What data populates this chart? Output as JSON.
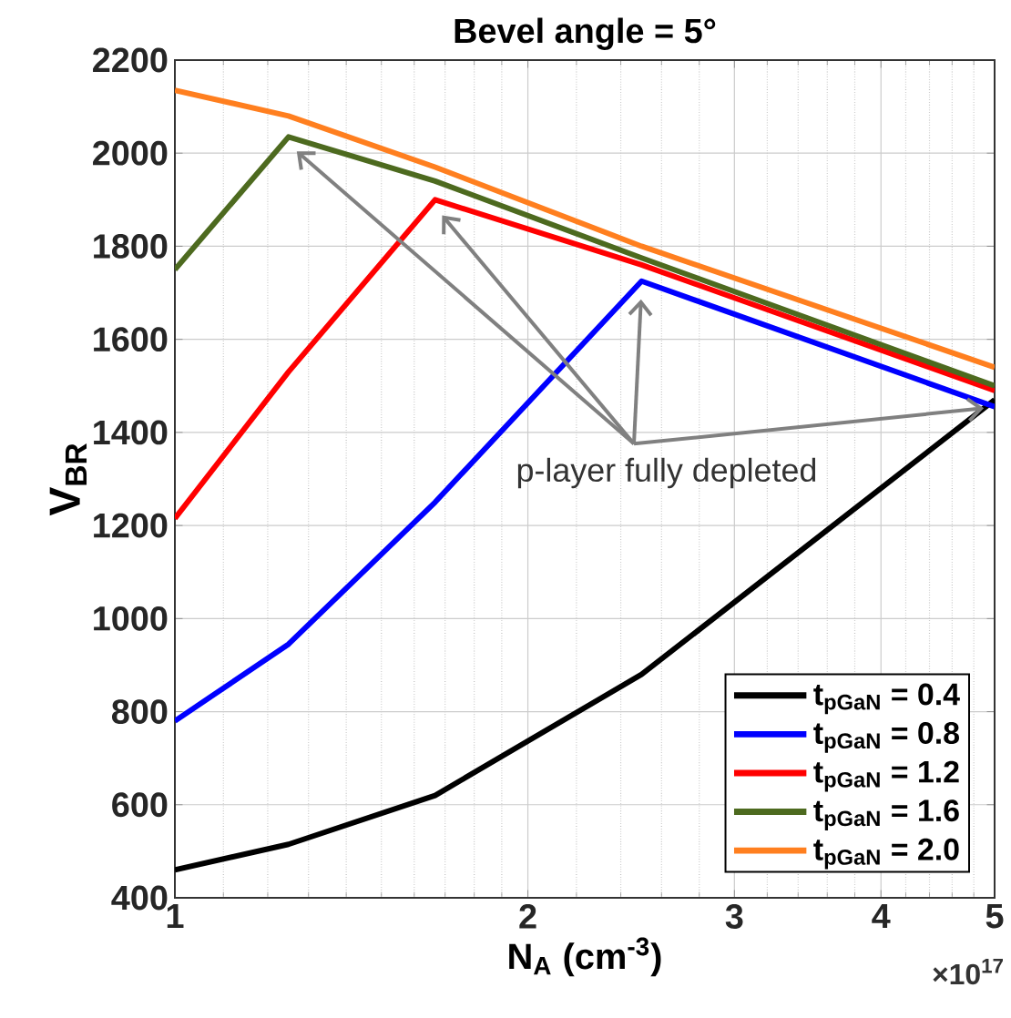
{
  "chart_data": {
    "type": "line",
    "title": "Bevel angle = 5°",
    "xlabel": "N$_{A}$ (cm$^{-3}$)",
    "ylabel": "V$_{BR}$",
    "x": [
      1,
      1.25,
      1.667,
      2.5,
      5
    ],
    "series": [
      {
        "name": "t$_{pGaN}$ = 0.4",
        "color": "#000000",
        "values": [
          460,
          515,
          620,
          880,
          1470
        ]
      },
      {
        "name": "t$_{pGaN}$ = 0.8",
        "color": "#0000ff",
        "values": [
          780,
          945,
          1250,
          1725,
          1455
        ]
      },
      {
        "name": "t$_{pGaN}$ = 1.2",
        "color": "#ff0000",
        "values": [
          1215,
          1530,
          1900,
          1760,
          1490
        ]
      },
      {
        "name": "t$_{pGaN}$ = 1.6",
        "color": "#4d6a1f",
        "values": [
          1750,
          2035,
          1940,
          1775,
          1500
        ]
      },
      {
        "name": "t$_{pGaN}$ = 2.0",
        "color": "#ff7f1f",
        "values": [
          2135,
          2080,
          1970,
          1800,
          1540
        ]
      }
    ],
    "log": "x",
    "xlim": [
      1,
      5
    ],
    "xticks": [
      1,
      2,
      3,
      4,
      5
    ],
    "ylim": [
      400,
      2200
    ],
    "yticks": [
      400,
      600,
      800,
      1000,
      1200,
      1400,
      1600,
      1800,
      2000,
      2200
    ],
    "grid": true,
    "legend": "bottom right",
    "line_style": "solid",
    "marker": "none",
    "annotations": [
      "p-layer fully depleted",
      "×10$^{17}$"
    ]
  }
}
